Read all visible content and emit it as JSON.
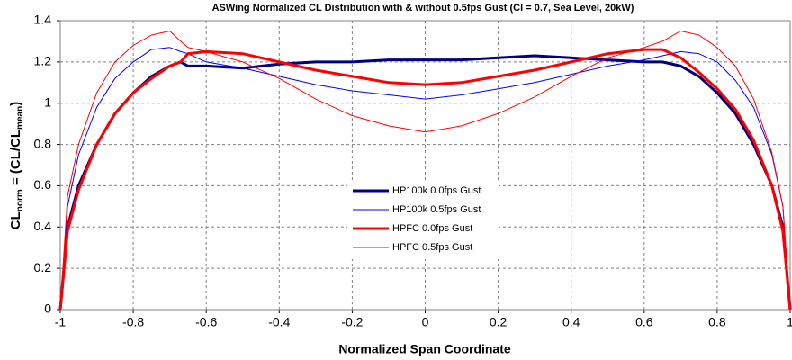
{
  "chart_data": {
    "type": "line",
    "title": "ASWing Normalized CL Distribution with & without 0.5fps Gust (Cl = 0.7, Sea Level, 20kW)",
    "xlabel": "Normalized Span Coordinate",
    "ylabel": [
      "CL",
      "norm",
      " = (CL/CL",
      "mean",
      ")"
    ],
    "x": [
      -1,
      -0.98,
      -0.95,
      -0.9,
      -0.85,
      -0.8,
      -0.75,
      -0.7,
      -0.67,
      -0.65,
      -0.6,
      -0.5,
      -0.4,
      -0.3,
      -0.2,
      -0.1,
      0,
      0.1,
      0.2,
      0.3,
      0.4,
      0.5,
      0.6,
      0.65,
      0.7,
      0.75,
      0.8,
      0.85,
      0.9,
      0.95,
      0.98,
      1
    ],
    "series": [
      {
        "name": "HP100k 0.0fps Gust",
        "color": "#000080",
        "width": 3,
        "values": [
          0,
          0.4,
          0.6,
          0.8,
          0.95,
          1.05,
          1.13,
          1.18,
          1.2,
          1.18,
          1.18,
          1.17,
          1.19,
          1.2,
          1.2,
          1.21,
          1.21,
          1.21,
          1.22,
          1.23,
          1.22,
          1.21,
          1.2,
          1.2,
          1.18,
          1.13,
          1.05,
          0.95,
          0.8,
          0.6,
          0.4,
          0
        ]
      },
      {
        "name": "HP100k 0.5fps Gust",
        "color": "#0000ff",
        "width": 1,
        "values": [
          0,
          0.5,
          0.75,
          0.98,
          1.12,
          1.2,
          1.26,
          1.27,
          1.25,
          1.24,
          1.2,
          1.17,
          1.13,
          1.09,
          1.06,
          1.04,
          1.02,
          1.04,
          1.07,
          1.1,
          1.14,
          1.18,
          1.21,
          1.23,
          1.25,
          1.24,
          1.2,
          1.11,
          0.98,
          0.75,
          0.5,
          0
        ]
      },
      {
        "name": "HPFC 0.0fps Gust",
        "color": "#ff0000",
        "width": 3,
        "values": [
          0,
          0.38,
          0.58,
          0.8,
          0.95,
          1.05,
          1.12,
          1.18,
          1.2,
          1.24,
          1.25,
          1.24,
          1.2,
          1.16,
          1.13,
          1.1,
          1.09,
          1.1,
          1.13,
          1.16,
          1.2,
          1.24,
          1.26,
          1.26,
          1.22,
          1.15,
          1.07,
          0.97,
          0.82,
          0.6,
          0.38,
          0
        ]
      },
      {
        "name": "HPFC 0.5fps Gust",
        "color": "#ff0000",
        "width": 1,
        "values": [
          0,
          0.55,
          0.8,
          1.05,
          1.2,
          1.28,
          1.33,
          1.35,
          1.3,
          1.27,
          1.25,
          1.2,
          1.12,
          1.02,
          0.94,
          0.89,
          0.86,
          0.89,
          0.95,
          1.03,
          1.13,
          1.22,
          1.27,
          1.3,
          1.35,
          1.33,
          1.27,
          1.18,
          1.02,
          0.76,
          0.5,
          0
        ]
      }
    ],
    "xlim": [
      -1,
      1
    ],
    "xticks": [
      -1,
      -0.8,
      -0.6,
      -0.4,
      -0.2,
      0,
      0.2,
      0.4,
      0.6,
      0.8,
      1
    ],
    "ylim": [
      0,
      1.4
    ],
    "yticks": [
      0,
      0.2,
      0.4,
      0.6,
      0.8,
      1,
      1.2,
      1.4
    ],
    "grid": true
  }
}
